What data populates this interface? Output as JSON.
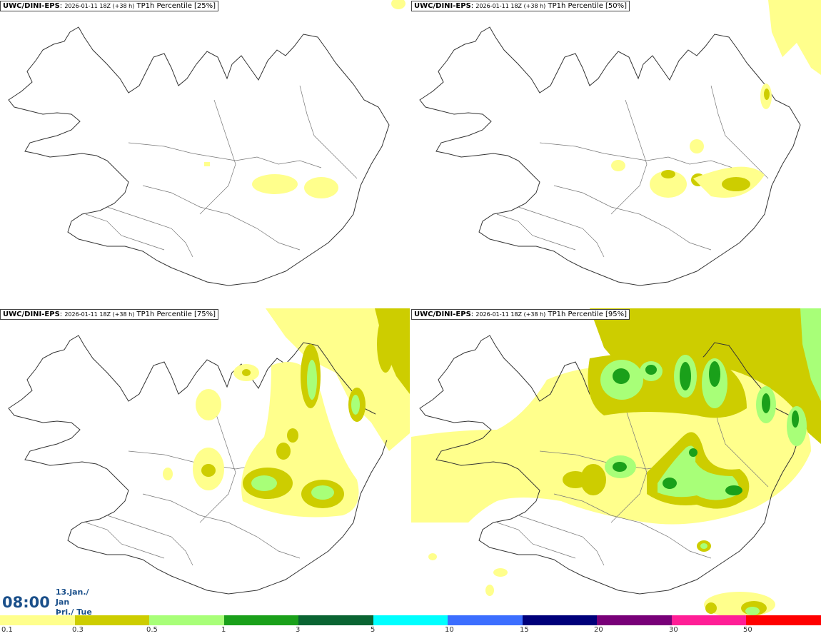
{
  "panels": [
    {
      "source": "UWC/DINI-EPS",
      "run": "2026-01-11 18Z (+38 h)",
      "product": "TP1h Percentile [25%]"
    },
    {
      "source": "UWC/DINI-EPS",
      "run": "2026-01-11 18Z (+38 h)",
      "product": "TP1h Percentile [50%]"
    },
    {
      "source": "UWC/DINI-EPS",
      "run": "2026-01-11 18Z (+38 h)",
      "product": "TP1h Percentile [75%]"
    },
    {
      "source": "UWC/DINI-EPS",
      "run": "2026-01-11 18Z (+38 h)",
      "product": "TP1h Percentile [95%]"
    }
  ],
  "time": {
    "clock": "08:00",
    "date_line": "13.jan./ Jan",
    "day_line": "Þri./ Tue"
  },
  "legend": {
    "colors": [
      "#ffff8c",
      "#cdcd00",
      "#a8ff78",
      "#1aa01a",
      "#0a6432",
      "#00ffff",
      "#3c6eff",
      "#00007a",
      "#780078",
      "#ff1e96",
      "#ff0000"
    ],
    "ticks": [
      "0.1",
      "0.3",
      "0.5",
      "1",
      "3",
      "5",
      "10",
      "15",
      "20",
      "30",
      "50"
    ]
  },
  "palette": {
    "light": "#ffff8c",
    "olive": "#cdcd00",
    "lightgreen": "#a8ff78",
    "green": "#1aa01a"
  }
}
